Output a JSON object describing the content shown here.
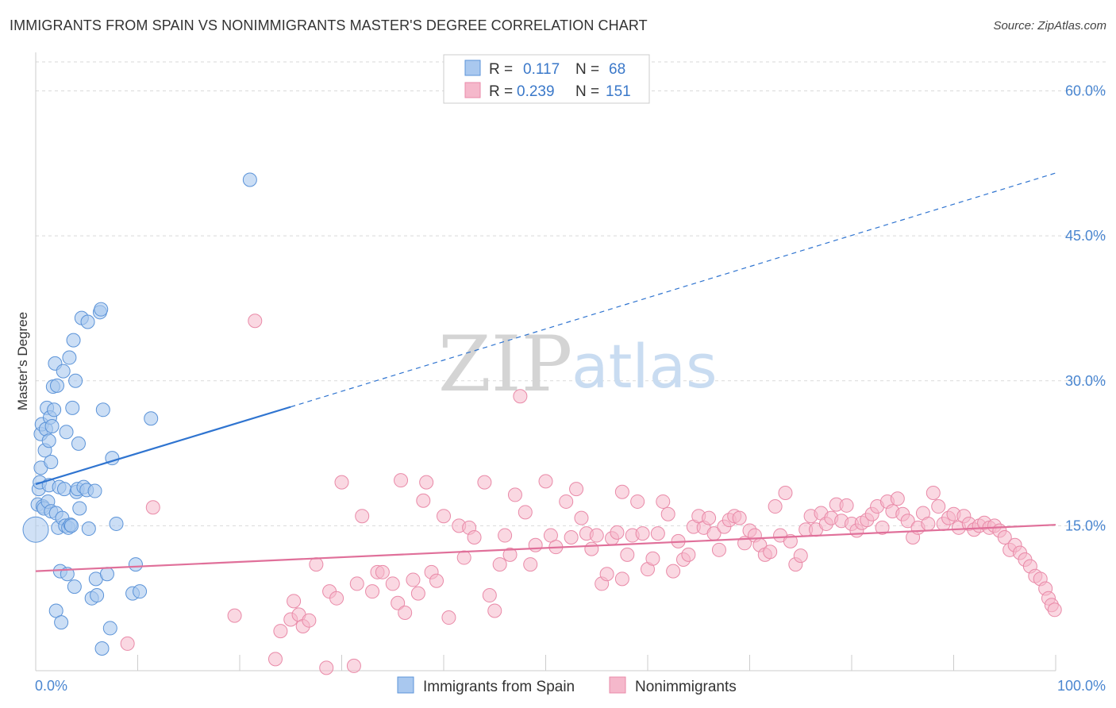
{
  "title": "IMMIGRANTS FROM SPAIN VS NONIMMIGRANTS MASTER'S DEGREE CORRELATION CHART",
  "source": "Source: ZipAtlas.com",
  "watermark": {
    "zip": "ZIP",
    "atlas": "atlas"
  },
  "colors": {
    "blue_fill": "#a9c8ef",
    "blue_stroke": "#5b93d8",
    "blue_line": "#2f74d0",
    "pink_fill": "#f5b8cb",
    "pink_stroke": "#e98aa8",
    "pink_line": "#e0709a",
    "tick_text": "#4a86d0",
    "grid": "#d9d9d9"
  },
  "legend": {
    "rows": [
      {
        "r_label": "R =",
        "r_value": "0.117",
        "n_label": "N =",
        "n_value": "68"
      },
      {
        "r_label": "R =",
        "r_value": "0.239",
        "n_label": "N =",
        "n_value": "151"
      }
    ]
  },
  "chart_data": {
    "type": "scatter",
    "title": "IMMIGRANTS FROM SPAIN VS NONIMMIGRANTS MASTER'S DEGREE CORRELATION CHART",
    "xlabel": "",
    "ylabel": "Master's Degree",
    "xlim": [
      0,
      100
    ],
    "ylim": [
      0,
      63
    ],
    "x_tick_labels": [
      "0.0%",
      "100.0%"
    ],
    "y_ticks": [
      15,
      30,
      45,
      60
    ],
    "y_tick_labels": [
      "15.0%",
      "30.0%",
      "45.0%",
      "60.0%"
    ],
    "grid": true,
    "legend_position": "top-center",
    "series": [
      {
        "name": "Immigrants from Spain",
        "color": "#a9c8ef",
        "trend": {
          "x0": 0,
          "y0": 19.3,
          "x1": 25,
          "y1": 27.3,
          "dashed_to_x": 100,
          "dashed_to_y": 51.5
        },
        "points": [
          [
            0.2,
            17.2
          ],
          [
            0.3,
            18.8
          ],
          [
            0.4,
            19.5
          ],
          [
            0.5,
            21.0
          ],
          [
            0.5,
            24.5
          ],
          [
            0.6,
            25.5
          ],
          [
            0.7,
            17.0
          ],
          [
            0.8,
            16.8
          ],
          [
            0.9,
            22.8
          ],
          [
            1.0,
            25.0
          ],
          [
            1.1,
            27.2
          ],
          [
            1.2,
            17.5
          ],
          [
            1.3,
            19.2
          ],
          [
            1.3,
            23.8
          ],
          [
            1.4,
            26.2
          ],
          [
            1.5,
            16.5
          ],
          [
            1.5,
            21.6
          ],
          [
            1.6,
            25.3
          ],
          [
            1.7,
            29.4
          ],
          [
            1.8,
            27.0
          ],
          [
            1.9,
            31.8
          ],
          [
            2.0,
            16.3
          ],
          [
            2.0,
            6.2
          ],
          [
            2.1,
            29.5
          ],
          [
            2.2,
            14.8
          ],
          [
            2.3,
            19.0
          ],
          [
            2.4,
            10.3
          ],
          [
            2.5,
            5.0
          ],
          [
            2.6,
            15.8
          ],
          [
            2.7,
            31.0
          ],
          [
            2.8,
            18.8
          ],
          [
            2.9,
            15.0
          ],
          [
            3.0,
            24.7
          ],
          [
            3.1,
            10.0
          ],
          [
            3.2,
            14.8
          ],
          [
            3.3,
            32.4
          ],
          [
            3.4,
            15.1
          ],
          [
            3.5,
            15.0
          ],
          [
            3.6,
            27.2
          ],
          [
            3.7,
            34.2
          ],
          [
            3.8,
            8.7
          ],
          [
            3.9,
            30.0
          ],
          [
            4.0,
            18.5
          ],
          [
            4.1,
            18.8
          ],
          [
            4.2,
            23.5
          ],
          [
            4.3,
            16.8
          ],
          [
            4.5,
            36.5
          ],
          [
            4.7,
            19.0
          ],
          [
            5.0,
            18.7
          ],
          [
            5.1,
            36.1
          ],
          [
            5.2,
            14.7
          ],
          [
            5.5,
            7.5
          ],
          [
            5.8,
            18.6
          ],
          [
            5.9,
            9.5
          ],
          [
            6.0,
            7.8
          ],
          [
            6.3,
            37.1
          ],
          [
            6.4,
            37.4
          ],
          [
            6.5,
            2.3
          ],
          [
            6.6,
            27.0
          ],
          [
            7.0,
            10.0
          ],
          [
            7.3,
            4.4
          ],
          [
            7.5,
            22.0
          ],
          [
            7.9,
            15.2
          ],
          [
            9.5,
            8.0
          ],
          [
            9.8,
            11.0
          ],
          [
            10.2,
            8.2
          ],
          [
            11.3,
            26.1
          ],
          [
            21.0,
            50.8
          ]
        ]
      },
      {
        "name": "Nonimmigrants",
        "color": "#f5b8cb",
        "trend": {
          "x0": 0,
          "y0": 10.3,
          "x1": 100,
          "y1": 15.1
        },
        "points": [
          [
            9.0,
            2.8
          ],
          [
            11.5,
            16.9
          ],
          [
            19.5,
            5.7
          ],
          [
            21.5,
            36.2
          ],
          [
            23.5,
            1.2
          ],
          [
            24.0,
            4.1
          ],
          [
            25.0,
            5.3
          ],
          [
            25.3,
            7.2
          ],
          [
            25.8,
            5.8
          ],
          [
            26.2,
            4.6
          ],
          [
            26.8,
            5.2
          ],
          [
            27.5,
            11.0
          ],
          [
            28.5,
            0.3
          ],
          [
            28.8,
            8.2
          ],
          [
            29.5,
            7.5
          ],
          [
            30.0,
            19.5
          ],
          [
            31.2,
            0.5
          ],
          [
            31.5,
            9.0
          ],
          [
            32.0,
            16.0
          ],
          [
            33.0,
            8.2
          ],
          [
            33.5,
            10.2
          ],
          [
            34.0,
            10.2
          ],
          [
            35.0,
            9.0
          ],
          [
            35.5,
            7.0
          ],
          [
            35.8,
            19.7
          ],
          [
            36.2,
            6.0
          ],
          [
            37.0,
            9.4
          ],
          [
            37.5,
            8.0
          ],
          [
            38.0,
            17.6
          ],
          [
            38.3,
            19.5
          ],
          [
            38.8,
            10.2
          ],
          [
            39.3,
            9.3
          ],
          [
            40.0,
            16.0
          ],
          [
            40.5,
            5.5
          ],
          [
            41.5,
            15.0
          ],
          [
            42.0,
            11.7
          ],
          [
            42.5,
            14.8
          ],
          [
            43.0,
            13.8
          ],
          [
            44.0,
            19.5
          ],
          [
            44.5,
            7.8
          ],
          [
            45.0,
            6.2
          ],
          [
            45.5,
            11.0
          ],
          [
            46.0,
            14.0
          ],
          [
            46.5,
            12.0
          ],
          [
            47.0,
            18.2
          ],
          [
            47.5,
            28.4
          ],
          [
            48.0,
            16.4
          ],
          [
            48.5,
            11.0
          ],
          [
            49.0,
            13.0
          ],
          [
            50.0,
            19.6
          ],
          [
            50.5,
            14.0
          ],
          [
            51.0,
            12.8
          ],
          [
            52.0,
            17.5
          ],
          [
            52.5,
            13.8
          ],
          [
            53.0,
            18.8
          ],
          [
            53.5,
            15.8
          ],
          [
            54.0,
            14.2
          ],
          [
            54.5,
            12.6
          ],
          [
            55.0,
            14.0
          ],
          [
            55.5,
            9.0
          ],
          [
            56.0,
            10.0
          ],
          [
            56.5,
            13.7
          ],
          [
            57.0,
            14.3
          ],
          [
            57.5,
            9.5
          ],
          [
            58.0,
            12.0
          ],
          [
            58.5,
            14.0
          ],
          [
            59.0,
            17.5
          ],
          [
            59.5,
            14.2
          ],
          [
            60.0,
            10.5
          ],
          [
            60.5,
            11.6
          ],
          [
            61.0,
            14.2
          ],
          [
            61.5,
            17.5
          ],
          [
            62.0,
            16.2
          ],
          [
            62.5,
            10.3
          ],
          [
            63.0,
            13.4
          ],
          [
            63.5,
            11.5
          ],
          [
            64.0,
            12.0
          ],
          [
            64.5,
            14.9
          ],
          [
            65.0,
            16.0
          ],
          [
            65.5,
            14.8
          ],
          [
            66.0,
            15.8
          ],
          [
            66.5,
            14.2
          ],
          [
            67.0,
            12.5
          ],
          [
            67.5,
            14.9
          ],
          [
            68.0,
            15.6
          ],
          [
            68.5,
            16.0
          ],
          [
            69.0,
            15.8
          ],
          [
            69.5,
            13.2
          ],
          [
            70.0,
            14.5
          ],
          [
            70.5,
            14.0
          ],
          [
            71.0,
            13.0
          ],
          [
            71.5,
            12.0
          ],
          [
            72.0,
            12.3
          ],
          [
            72.5,
            17.0
          ],
          [
            73.0,
            14.0
          ],
          [
            73.5,
            18.4
          ],
          [
            74.0,
            13.4
          ],
          [
            74.5,
            11.0
          ],
          [
            75.0,
            11.9
          ],
          [
            75.5,
            14.6
          ],
          [
            76.0,
            16.0
          ],
          [
            76.5,
            14.6
          ],
          [
            77.0,
            16.3
          ],
          [
            77.5,
            15.2
          ],
          [
            78.0,
            15.8
          ],
          [
            78.5,
            17.2
          ],
          [
            79.0,
            15.5
          ],
          [
            79.5,
            17.1
          ],
          [
            80.0,
            15.2
          ],
          [
            80.5,
            14.5
          ],
          [
            81.0,
            15.3
          ],
          [
            81.5,
            15.6
          ],
          [
            82.0,
            16.2
          ],
          [
            82.5,
            17.0
          ],
          [
            83.0,
            14.8
          ],
          [
            83.5,
            17.5
          ],
          [
            84.0,
            16.5
          ],
          [
            84.5,
            17.8
          ],
          [
            85.0,
            16.2
          ],
          [
            85.5,
            15.5
          ],
          [
            86.0,
            13.8
          ],
          [
            86.5,
            14.8
          ],
          [
            87.0,
            16.3
          ],
          [
            87.5,
            15.2
          ],
          [
            88.0,
            18.4
          ],
          [
            88.5,
            17.0
          ],
          [
            89.0,
            15.2
          ],
          [
            89.5,
            15.8
          ],
          [
            90.0,
            16.2
          ],
          [
            90.5,
            14.8
          ],
          [
            91.0,
            16.0
          ],
          [
            91.5,
            15.2
          ],
          [
            92.0,
            14.6
          ],
          [
            92.5,
            15.0
          ],
          [
            93.0,
            15.3
          ],
          [
            93.5,
            14.8
          ],
          [
            94.0,
            15.0
          ],
          [
            94.5,
            14.5
          ],
          [
            95.0,
            13.8
          ],
          [
            95.5,
            12.5
          ],
          [
            96.0,
            13.0
          ],
          [
            96.5,
            12.2
          ],
          [
            97.0,
            11.5
          ],
          [
            97.5,
            10.8
          ],
          [
            98.0,
            9.8
          ],
          [
            98.5,
            9.5
          ],
          [
            99.0,
            8.5
          ],
          [
            99.3,
            7.5
          ],
          [
            99.6,
            6.8
          ],
          [
            99.9,
            6.3
          ],
          [
            57.5,
            18.5
          ]
        ]
      }
    ]
  }
}
